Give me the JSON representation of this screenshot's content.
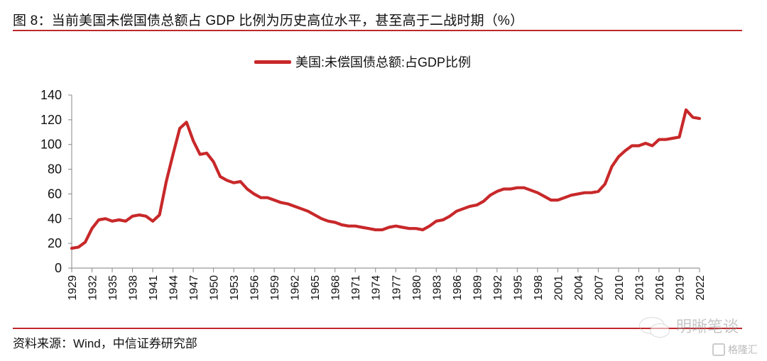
{
  "figure": {
    "title": "图 8：当前美国未偿国债总额占 GDP 比例为历史高位水平，甚至高于二战时期（%）",
    "source": "资料来源：Wind，中信证券研究部",
    "watermark_primary": "明晰笔谈",
    "watermark_secondary": "格隆汇",
    "watermark_icon": "wechat-icon",
    "accent_color": "#c8282a"
  },
  "chart_data": {
    "type": "line",
    "title": "当前美国未偿国债总额占 GDP 比例为历史高位水平，甚至高于二战时期（%）",
    "xlabel": "",
    "ylabel": "",
    "ylim": [
      0,
      140
    ],
    "yticks": [
      0,
      20,
      40,
      60,
      80,
      100,
      120,
      140
    ],
    "xlim": [
      1929,
      2022
    ],
    "xticks": [
      "1929",
      "1932",
      "1935",
      "1938",
      "1941",
      "1944",
      "1947",
      "1950",
      "1953",
      "1956",
      "1959",
      "1962",
      "1965",
      "1968",
      "1971",
      "1974",
      "1977",
      "1980",
      "1983",
      "1986",
      "1989",
      "1992",
      "1995",
      "1998",
      "2001",
      "2004",
      "2007",
      "2010",
      "2013",
      "2016",
      "2019",
      "2022"
    ],
    "grid": false,
    "legend_position": "top-center",
    "series": [
      {
        "name": "美国:未偿国债总额:占GDP比例",
        "color": "#c8282a",
        "x": [
          1929,
          1930,
          1931,
          1932,
          1933,
          1934,
          1935,
          1936,
          1937,
          1938,
          1939,
          1940,
          1941,
          1942,
          1943,
          1944,
          1945,
          1946,
          1947,
          1948,
          1949,
          1950,
          1951,
          1952,
          1953,
          1954,
          1955,
          1956,
          1957,
          1958,
          1959,
          1960,
          1961,
          1962,
          1963,
          1964,
          1965,
          1966,
          1967,
          1968,
          1969,
          1970,
          1971,
          1972,
          1973,
          1974,
          1975,
          1976,
          1977,
          1978,
          1979,
          1980,
          1981,
          1982,
          1983,
          1984,
          1985,
          1986,
          1987,
          1988,
          1989,
          1990,
          1991,
          1992,
          1993,
          1994,
          1995,
          1996,
          1997,
          1998,
          1999,
          2000,
          2001,
          2002,
          2003,
          2004,
          2005,
          2006,
          2007,
          2008,
          2009,
          2010,
          2011,
          2012,
          2013,
          2014,
          2015,
          2016,
          2017,
          2018,
          2019,
          2020,
          2021,
          2022
        ],
        "values": [
          16,
          17,
          21,
          32,
          39,
          40,
          38,
          39,
          38,
          42,
          43,
          42,
          38,
          43,
          70,
          92,
          113,
          118,
          103,
          92,
          93,
          86,
          74,
          71,
          69,
          70,
          64,
          60,
          57,
          57,
          55,
          53,
          52,
          50,
          48,
          46,
          43,
          40,
          38,
          37,
          35,
          34,
          34,
          33,
          32,
          31,
          31,
          33,
          34,
          33,
          32,
          32,
          31,
          34,
          38,
          39,
          42,
          46,
          48,
          50,
          51,
          54,
          59,
          62,
          64,
          64,
          65,
          65,
          63,
          61,
          58,
          55,
          55,
          57,
          59,
          60,
          61,
          61,
          62,
          68,
          82,
          90,
          95,
          99,
          99,
          101,
          99,
          104,
          104,
          105,
          106,
          128,
          122,
          121
        ]
      }
    ]
  }
}
